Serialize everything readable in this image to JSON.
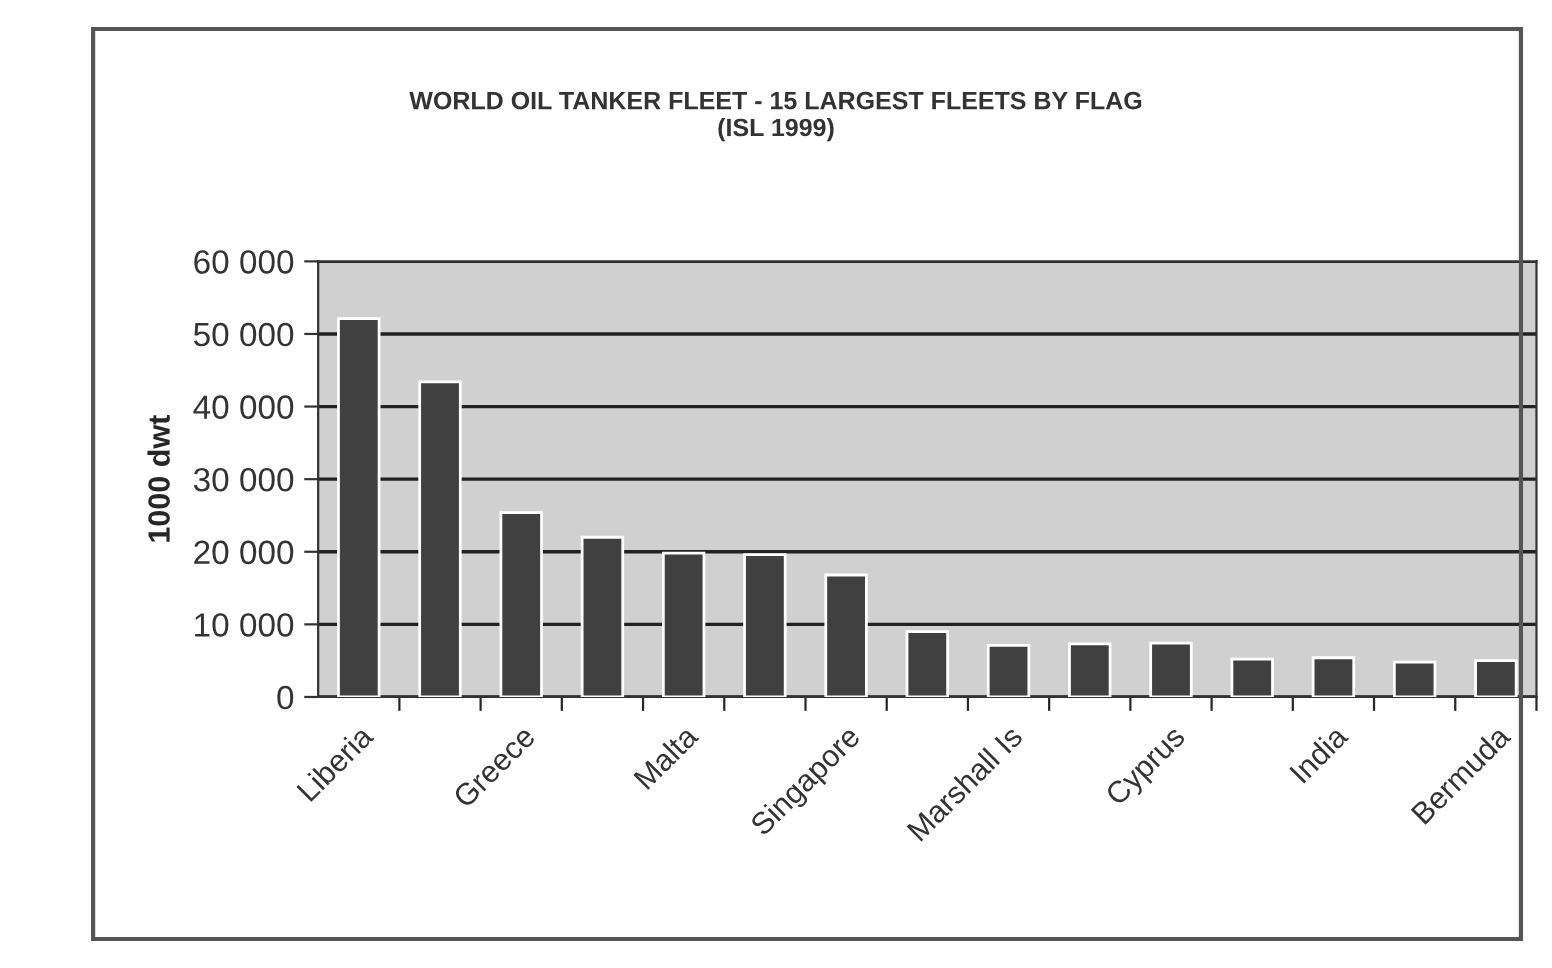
{
  "chart_data": {
    "type": "bar",
    "title": "WORLD OIL TANKER FLEET - 15 LARGEST FLEETS BY FLAG\n(ISL 1999)",
    "ylabel": "1000 dwt",
    "categories": [
      "Liberia",
      null,
      "Greece",
      null,
      "Malta",
      null,
      "Singapore",
      null,
      "Marshall Is",
      null,
      "Cyprus",
      null,
      "India",
      null,
      "Bermuda"
    ],
    "values": [
      52100,
      43400,
      25400,
      22000,
      19800,
      19600,
      16800,
      9000,
      7100,
      7300,
      7400,
      5200,
      5400,
      4800,
      5000
    ],
    "color": "#404040",
    "ylim": [
      0,
      60000
    ],
    "yticks": [
      {
        "value": 0,
        "label": "0"
      },
      {
        "value": 10000,
        "label": "10 000"
      },
      {
        "value": 20000,
        "label": "20 000"
      },
      {
        "value": 30000,
        "label": "30 000"
      },
      {
        "value": 40000,
        "label": "40 000"
      },
      {
        "value": 50000,
        "label": "50 000"
      },
      {
        "value": 60000,
        "label": "60 000"
      }
    ],
    "grid": "y",
    "legend": false
  }
}
